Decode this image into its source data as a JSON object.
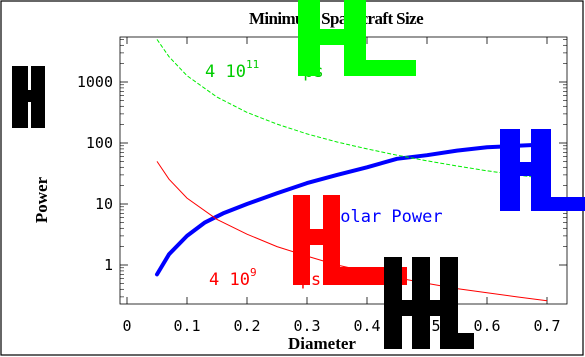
{
  "chart_data": {
    "type": "line",
    "title": "Minimum Spacecraft Size",
    "xlabel": "Diameter",
    "ylabel": "Power",
    "x_scale": "linear",
    "y_scale": "log",
    "xlim": [
      0,
      0.72
    ],
    "ylim": [
      0.2,
      7000
    ],
    "x_ticks": [
      "0",
      "0.1",
      "0.2",
      "0.3",
      "0.4",
      "0.5",
      "0.6",
      "0.7"
    ],
    "y_ticks": [
      "1",
      "10",
      "100",
      "1000"
    ],
    "series": [
      {
        "name": "Solar Power",
        "color": "#0000ff",
        "style": "solid-thick",
        "x": [
          0.05,
          0.07,
          0.1,
          0.13,
          0.16,
          0.2,
          0.25,
          0.3,
          0.35,
          0.4,
          0.45,
          0.5,
          0.55,
          0.6,
          0.65,
          0.7
        ],
        "y": [
          0.7,
          1.5,
          3,
          5,
          7,
          10,
          15,
          22,
          30,
          40,
          55,
          63,
          75,
          85,
          90,
          95
        ]
      },
      {
        "name": "",
        "color": "#00ee00",
        "style": "dashed",
        "x": [
          0.05,
          0.07,
          0.1,
          0.15,
          0.2,
          0.25,
          0.3,
          0.35,
          0.4,
          0.45,
          0.5,
          0.55,
          0.6,
          0.65,
          0.7
        ],
        "y": [
          5000,
          2600,
          1270,
          566,
          318,
          204,
          141,
          104,
          80,
          63,
          51,
          42,
          35,
          30,
          26
        ]
      },
      {
        "name": "",
        "color": "#ff0000",
        "style": "solid-thin",
        "x": [
          0.05,
          0.07,
          0.1,
          0.15,
          0.2,
          0.25,
          0.3,
          0.35,
          0.4,
          0.45,
          0.5,
          0.55,
          0.6,
          0.65,
          0.7
        ],
        "y": [
          50,
          25.5,
          12.5,
          5.6,
          3.2,
          2.0,
          1.4,
          1.0,
          0.78,
          0.62,
          0.5,
          0.41,
          0.35,
          0.3,
          0.26
        ]
      }
    ],
    "annotations": [
      {
        "id": "green",
        "base": "4 10",
        "sup": "11",
        "tail": "ps",
        "color": "#00cc00"
      },
      {
        "id": "solar",
        "base": "Solar Power",
        "sup": "",
        "tail": "",
        "color": "#0000ff"
      },
      {
        "id": "red",
        "base": "4 10",
        "sup": "9",
        "tail": "ps",
        "color": "#ff0000"
      }
    ],
    "overlay_marks": [
      {
        "color": "#00ff00"
      },
      {
        "color": "#0000ff"
      },
      {
        "color": "#ff0000"
      },
      {
        "color": "#000000"
      },
      {
        "color": "#000000"
      },
      {
        "color": "#000000"
      }
    ]
  }
}
